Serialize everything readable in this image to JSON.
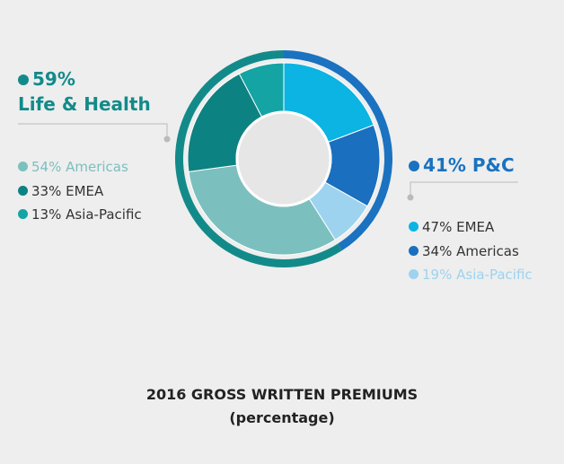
{
  "chart_data": {
    "type": "nested-donut",
    "title": "2016 GROSS WRITTEN PREMIUMS",
    "subtitle": "(percentage)",
    "groups": [
      {
        "name": "Life & Health",
        "value": 59,
        "value_label": "59%",
        "color": "#138a8a",
        "categories": [
          "Americas",
          "EMEA",
          "Asia-Pacific"
        ],
        "values": [
          54,
          33,
          13
        ],
        "value_labels": [
          "54%",
          "33%",
          "13%"
        ],
        "colors": [
          "#7cbfbf",
          "#0d8282",
          "#14a4a4"
        ]
      },
      {
        "name": "P&C",
        "value": 41,
        "value_label": "41%",
        "color": "#1a72c0",
        "categories": [
          "EMEA",
          "Americas",
          "Asia-Pacific"
        ],
        "values": [
          47,
          34,
          19
        ],
        "value_labels": [
          "47%",
          "34%",
          "19%"
        ],
        "colors": [
          "#0bb4e2",
          "#1a6fbf",
          "#9dd3ee"
        ]
      }
    ]
  }
}
